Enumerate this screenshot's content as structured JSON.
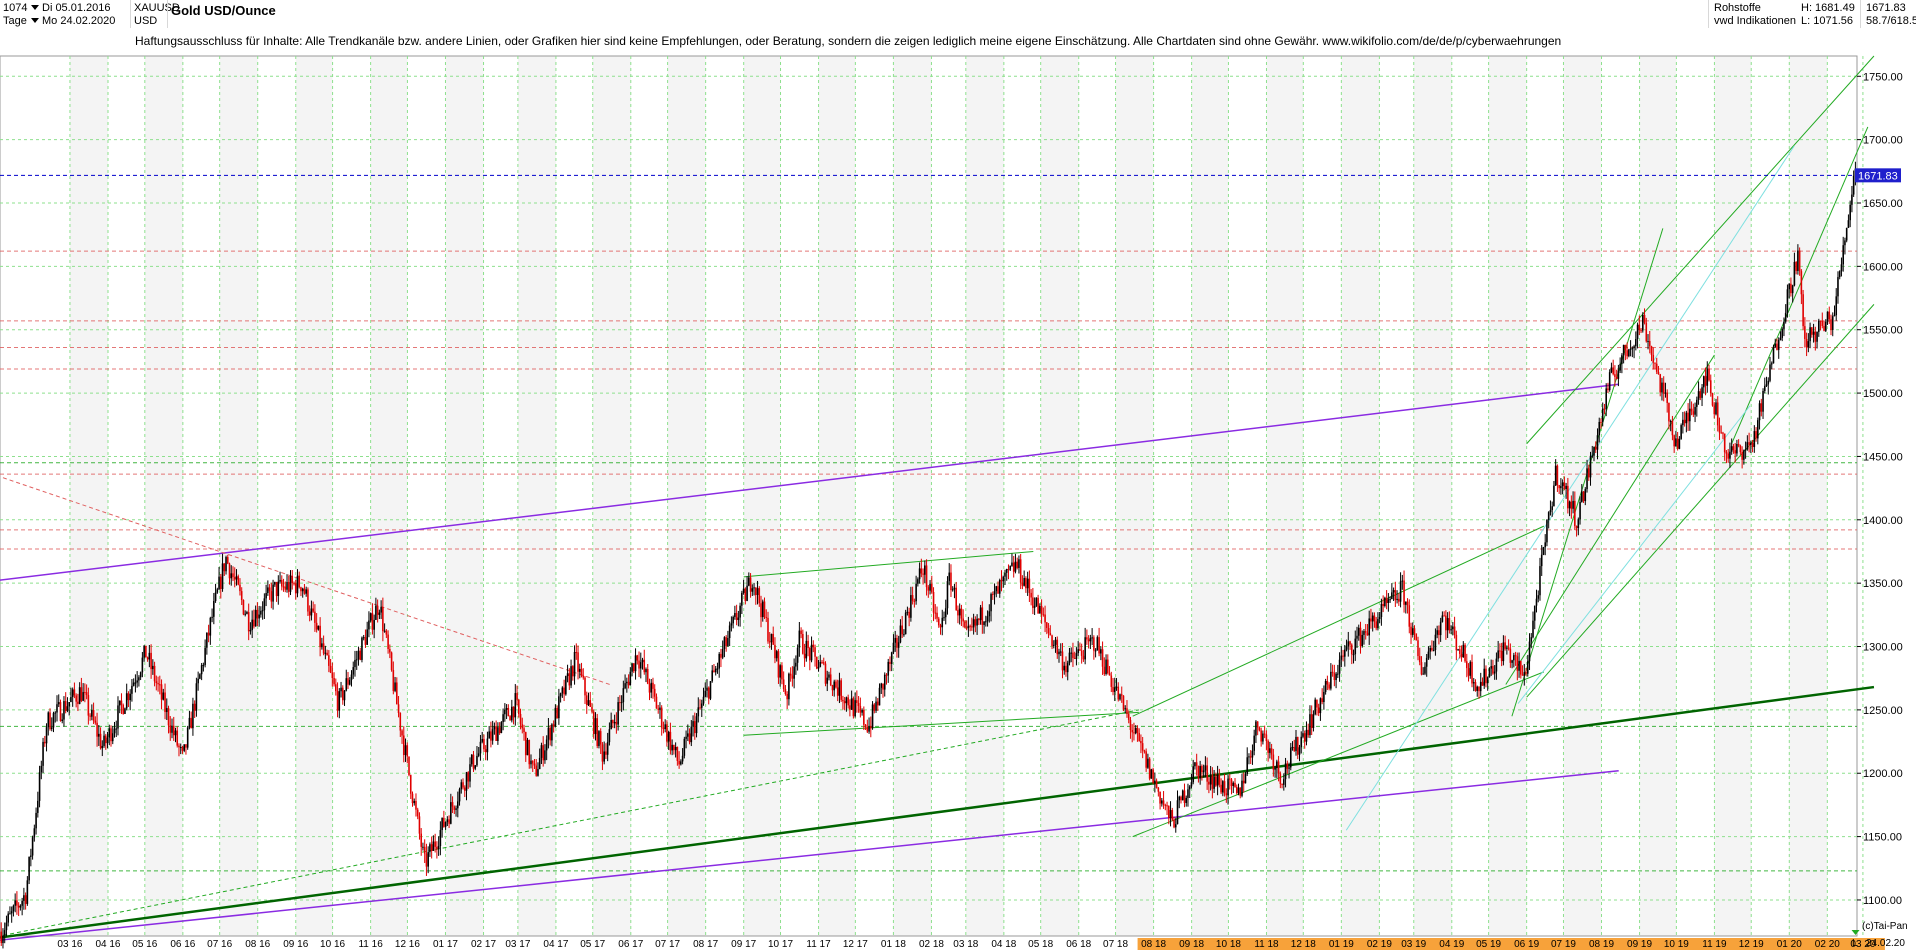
{
  "header": {
    "bar_count": "1074",
    "start_date": "Di 05.01.2016",
    "period": "Tage",
    "end_date": "Mo 24.02.2020",
    "symbol": "XAUUSD",
    "currency": "USD",
    "title": "Gold USD/Ounce",
    "category": "Rohstoffe",
    "source": "vwd Indikationen",
    "high": "H: 1681.49",
    "low": "L: 1071.56",
    "last": "1671.83",
    "range": "58.7/618.5"
  },
  "disclaimer": "Haftungsausschluss für Inhalte: Alle Trendkanäle bzw. andere Linien, oder Grafiken hier sind keine Empfehlungen, oder Beratung, sondern die zeigen lediglich meine eigene Einschätzung. Alle Chartdaten sind ohne Gewähr.  www.wikifolio.com/de/de/p/cyberwaehrungen",
  "footer": {
    "copyright": "(c)Tai-Pan",
    "scale_mode": "L",
    "date": "24.02.20"
  },
  "colors": {
    "up": "#000000",
    "down": "#e00000",
    "grid": "#8ee08e",
    "price_line": "#0000cc",
    "price_tag": "#1f1fcc",
    "date_highlight": "#f7a23a"
  },
  "chart_data": {
    "type": "candlestick",
    "title": "Gold USD/Ounce",
    "ylim": [
      1071.56,
      1766
    ],
    "yticks": [
      1100,
      1150,
      1200,
      1250,
      1300,
      1350,
      1400,
      1450,
      1500,
      1550,
      1600,
      1650,
      1700,
      1750
    ],
    "last_price": 1671.83,
    "last_price_label": "1671.83",
    "x_tick_labels": [
      "03 16",
      "04 16",
      "05 16",
      "06 16",
      "07 16",
      "08 16",
      "09 16",
      "10 16",
      "11 16",
      "12 16",
      "01 17",
      "02 17",
      "03 17",
      "04 17",
      "05 17",
      "06 17",
      "07 17",
      "08 17",
      "09 17",
      "10 17",
      "11 17",
      "12 17",
      "01 18",
      "02 18",
      "03 18",
      "04 18",
      "05 18",
      "06 18",
      "07 18",
      "08 18",
      "09 18",
      "10 18",
      "11 18",
      "12 18",
      "01 19",
      "02 19",
      "03 19",
      "04 19",
      "05 19",
      "06 19",
      "07 19",
      "08 19",
      "09 19",
      "10 19",
      "11 19",
      "12 19",
      "01 20",
      "02 20",
      "03 20"
    ],
    "x_tick_dates": [
      "2016-03",
      "2016-04",
      "2016-05",
      "2016-06",
      "2016-07",
      "2016-08",
      "2016-09",
      "2016-10",
      "2016-11",
      "2016-12",
      "2017-01",
      "2017-02",
      "2017-03",
      "2017-04",
      "2017-05",
      "2017-06",
      "2017-07",
      "2017-08",
      "2017-09",
      "2017-10",
      "2017-11",
      "2017-12",
      "2018-01",
      "2018-02",
      "2018-03",
      "2018-04",
      "2018-05",
      "2018-06",
      "2018-07",
      "2018-08",
      "2018-09",
      "2018-10",
      "2018-11",
      "2018-12",
      "2019-01",
      "2019-02",
      "2019-03",
      "2019-04",
      "2019-05",
      "2019-06",
      "2019-07",
      "2019-08",
      "2019-09",
      "2019-10",
      "2019-11",
      "2019-12",
      "2020-01",
      "2020-02",
      "2020-03"
    ],
    "highlighted_x_range": [
      "08 18",
      "03 20"
    ],
    "price_path": [
      {
        "date": "2016-01-05",
        "price": 1075
      },
      {
        "date": "2016-01-25",
        "price": 1105
      },
      {
        "date": "2016-02-11",
        "price": 1240
      },
      {
        "date": "2016-03-10",
        "price": 1265
      },
      {
        "date": "2016-03-28",
        "price": 1220
      },
      {
        "date": "2016-05-02",
        "price": 1295
      },
      {
        "date": "2016-06-01",
        "price": 1210
      },
      {
        "date": "2016-06-24",
        "price": 1320
      },
      {
        "date": "2016-07-06",
        "price": 1370
      },
      {
        "date": "2016-07-25",
        "price": 1320
      },
      {
        "date": "2016-08-15",
        "price": 1345
      },
      {
        "date": "2016-09-06",
        "price": 1350
      },
      {
        "date": "2016-10-06",
        "price": 1255
      },
      {
        "date": "2016-11-08",
        "price": 1335
      },
      {
        "date": "2016-12-15",
        "price": 1128
      },
      {
        "date": "2017-01-24",
        "price": 1210
      },
      {
        "date": "2017-02-27",
        "price": 1255
      },
      {
        "date": "2017-03-14",
        "price": 1198
      },
      {
        "date": "2017-04-17",
        "price": 1290
      },
      {
        "date": "2017-05-09",
        "price": 1215
      },
      {
        "date": "2017-06-06",
        "price": 1295
      },
      {
        "date": "2017-07-10",
        "price": 1207
      },
      {
        "date": "2017-09-08",
        "price": 1355
      },
      {
        "date": "2017-10-06",
        "price": 1262
      },
      {
        "date": "2017-10-16",
        "price": 1305
      },
      {
        "date": "2017-12-12",
        "price": 1237
      },
      {
        "date": "2018-01-25",
        "price": 1363
      },
      {
        "date": "2018-02-08",
        "price": 1310
      },
      {
        "date": "2018-02-16",
        "price": 1355
      },
      {
        "date": "2018-03-01",
        "price": 1305
      },
      {
        "date": "2018-04-11",
        "price": 1365
      },
      {
        "date": "2018-05-21",
        "price": 1285
      },
      {
        "date": "2018-06-14",
        "price": 1305
      },
      {
        "date": "2018-08-16",
        "price": 1160
      },
      {
        "date": "2018-09-04",
        "price": 1205
      },
      {
        "date": "2018-10-09",
        "price": 1182
      },
      {
        "date": "2018-10-25",
        "price": 1240
      },
      {
        "date": "2018-11-13",
        "price": 1197
      },
      {
        "date": "2019-01-04",
        "price": 1295
      },
      {
        "date": "2019-02-20",
        "price": 1345
      },
      {
        "date": "2019-03-07",
        "price": 1280
      },
      {
        "date": "2019-03-25",
        "price": 1325
      },
      {
        "date": "2019-04-23",
        "price": 1268
      },
      {
        "date": "2019-05-14",
        "price": 1300
      },
      {
        "date": "2019-05-30",
        "price": 1275
      },
      {
        "date": "2019-06-25",
        "price": 1438
      },
      {
        "date": "2019-07-12",
        "price": 1400
      },
      {
        "date": "2019-08-08",
        "price": 1510
      },
      {
        "date": "2019-09-04",
        "price": 1557
      },
      {
        "date": "2019-10-01",
        "price": 1460
      },
      {
        "date": "2019-10-25",
        "price": 1515
      },
      {
        "date": "2019-11-12",
        "price": 1450
      },
      {
        "date": "2019-12-02",
        "price": 1460
      },
      {
        "date": "2020-01-08",
        "price": 1610
      },
      {
        "date": "2020-01-13",
        "price": 1540
      },
      {
        "date": "2020-02-06",
        "price": 1560
      },
      {
        "date": "2020-02-24",
        "price": 1681
      }
    ],
    "grid": true,
    "horizontal_levels": [
      {
        "price": 1436,
        "style": "dashed",
        "color": "#e06060"
      },
      {
        "price": 1392,
        "style": "dashed",
        "color": "#e06060"
      },
      {
        "price": 1377,
        "style": "dashed",
        "color": "#e06060"
      },
      {
        "price": 1557,
        "style": "dashed",
        "color": "#e06060"
      },
      {
        "price": 1519,
        "style": "dashed",
        "color": "#e06060"
      },
      {
        "price": 1536,
        "style": "dashed",
        "color": "#e06060"
      },
      {
        "price": 1612,
        "style": "dashed",
        "color": "#e06060"
      },
      {
        "price": 1237,
        "style": "dashed",
        "color": "#22aa22"
      },
      {
        "price": 1123,
        "style": "dashed",
        "color": "#22aa22"
      },
      {
        "price": 1445,
        "style": "dashed",
        "color": "#22aa22"
      }
    ],
    "trendlines": [
      {
        "from": {
          "date": "2016-01-01",
          "price": 1352
        },
        "to": {
          "date": "2019-08-15",
          "price": 1507
        },
        "color": "#8a2be2",
        "width": 1.5
      },
      {
        "from": {
          "date": "2016-01-01",
          "price": 1068
        },
        "to": {
          "date": "2019-08-15",
          "price": 1202
        },
        "color": "#8a2be2",
        "width": 1.5
      },
      {
        "from": {
          "date": "2016-01-01",
          "price": 1070
        },
        "to": {
          "date": "2020-03-10",
          "price": 1268
        },
        "color": "#006400",
        "width": 2.5
      },
      {
        "from": {
          "date": "2016-01-01",
          "price": 1071
        },
        "to": {
          "date": "2018-07-20",
          "price": 1250
        },
        "color": "#22aa22",
        "width": 1,
        "dash": true
      },
      {
        "from": {
          "date": "2016-01-01",
          "price": 1435
        },
        "to": {
          "date": "2017-05-15",
          "price": 1270
        },
        "color": "#e06060",
        "width": 1,
        "dash": true
      },
      {
        "from": {
          "date": "2017-09-01",
          "price": 1355
        },
        "to": {
          "date": "2018-04-25",
          "price": 1375
        },
        "color": "#22aa22",
        "width": 1
      },
      {
        "from": {
          "date": "2017-09-01",
          "price": 1230
        },
        "to": {
          "date": "2018-07-20",
          "price": 1248
        },
        "color": "#22aa22",
        "width": 1
      },
      {
        "from": {
          "date": "2018-07-15",
          "price": 1245
        },
        "to": {
          "date": "2019-06-15",
          "price": 1395
        },
        "color": "#22aa22",
        "width": 1
      },
      {
        "from": {
          "date": "2018-07-15",
          "price": 1150
        },
        "to": {
          "date": "2019-06-15",
          "price": 1280
        },
        "color": "#22aa22",
        "width": 1
      },
      {
        "from": {
          "date": "2019-05-15",
          "price": 1270
        },
        "to": {
          "date": "2019-11-01",
          "price": 1530
        },
        "color": "#22aa22",
        "width": 1
      },
      {
        "from": {
          "date": "2019-06-01",
          "price": 1460
        },
        "to": {
          "date": "2020-03-10",
          "price": 1766
        },
        "color": "#22aa22",
        "width": 1
      },
      {
        "from": {
          "date": "2019-06-01",
          "price": 1260
        },
        "to": {
          "date": "2020-03-10",
          "price": 1570
        },
        "color": "#22aa22",
        "width": 1
      },
      {
        "from": {
          "date": "2019-11-15",
          "price": 1460
        },
        "to": {
          "date": "2020-03-05",
          "price": 1710
        },
        "color": "#22aa22",
        "width": 1
      },
      {
        "from": {
          "date": "2019-05-20",
          "price": 1245
        },
        "to": {
          "date": "2019-09-20",
          "price": 1630
        },
        "color": "#22aa22",
        "width": 1
      },
      {
        "from": {
          "date": "2019-01-05",
          "price": 1155
        },
        "to": {
          "date": "2020-01-05",
          "price": 1695
        },
        "color": "#7fe0e0",
        "width": 1
      },
      {
        "from": {
          "date": "2019-05-25",
          "price": 1255
        },
        "to": {
          "date": "2019-11-30",
          "price": 1490
        },
        "color": "#7fe0e0",
        "width": 1
      }
    ]
  }
}
